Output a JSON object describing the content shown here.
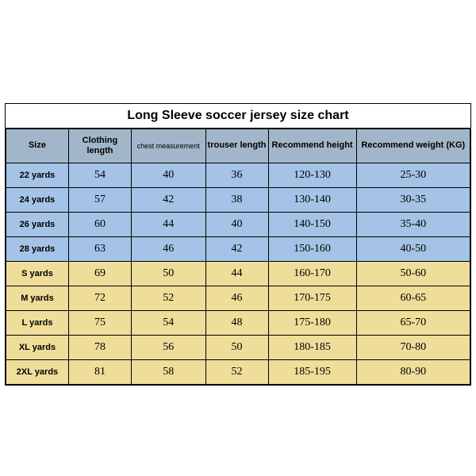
{
  "chart": {
    "type": "table",
    "title": "Long Sleeve soccer jersey size chart",
    "title_fontsize": 16,
    "header_bg": "#a1b7c9",
    "kids_row_bg": "#a4c3e6",
    "adult_row_bg": "#efdd9a",
    "border_color": "#000000",
    "columns": [
      {
        "key": "size",
        "label": "Size"
      },
      {
        "key": "cloth",
        "label": "Clothing length"
      },
      {
        "key": "chest",
        "label": "chest measurement"
      },
      {
        "key": "trous",
        "label": "trouser length"
      },
      {
        "key": "hrec",
        "label": "Recommend height"
      },
      {
        "key": "wrec",
        "label": "Recommend weight (KG)"
      }
    ],
    "rows": [
      {
        "group": "kids",
        "size": "22 yards",
        "cloth": "54",
        "chest": "40",
        "trous": "36",
        "hrec": "120-130",
        "wrec": "25-30"
      },
      {
        "group": "kids",
        "size": "24 yards",
        "cloth": "57",
        "chest": "42",
        "trous": "38",
        "hrec": "130-140",
        "wrec": "30-35"
      },
      {
        "group": "kids",
        "size": "26 yards",
        "cloth": "60",
        "chest": "44",
        "trous": "40",
        "hrec": "140-150",
        "wrec": "35-40"
      },
      {
        "group": "kids",
        "size": "28 yards",
        "cloth": "63",
        "chest": "46",
        "trous": "42",
        "hrec": "150-160",
        "wrec": "40-50"
      },
      {
        "group": "adult",
        "size": "S yards",
        "cloth": "69",
        "chest": "50",
        "trous": "44",
        "hrec": "160-170",
        "wrec": "50-60"
      },
      {
        "group": "adult",
        "size": "M yards",
        "cloth": "72",
        "chest": "52",
        "trous": "46",
        "hrec": "170-175",
        "wrec": "60-65"
      },
      {
        "group": "adult",
        "size": "L yards",
        "cloth": "75",
        "chest": "54",
        "trous": "48",
        "hrec": "175-180",
        "wrec": "65-70"
      },
      {
        "group": "adult",
        "size": "XL yards",
        "cloth": "78",
        "chest": "56",
        "trous": "50",
        "hrec": "180-185",
        "wrec": "70-80"
      },
      {
        "group": "adult",
        "size": "2XL yards",
        "cloth": "81",
        "chest": "58",
        "trous": "52",
        "hrec": "185-195",
        "wrec": "80-90"
      }
    ]
  }
}
